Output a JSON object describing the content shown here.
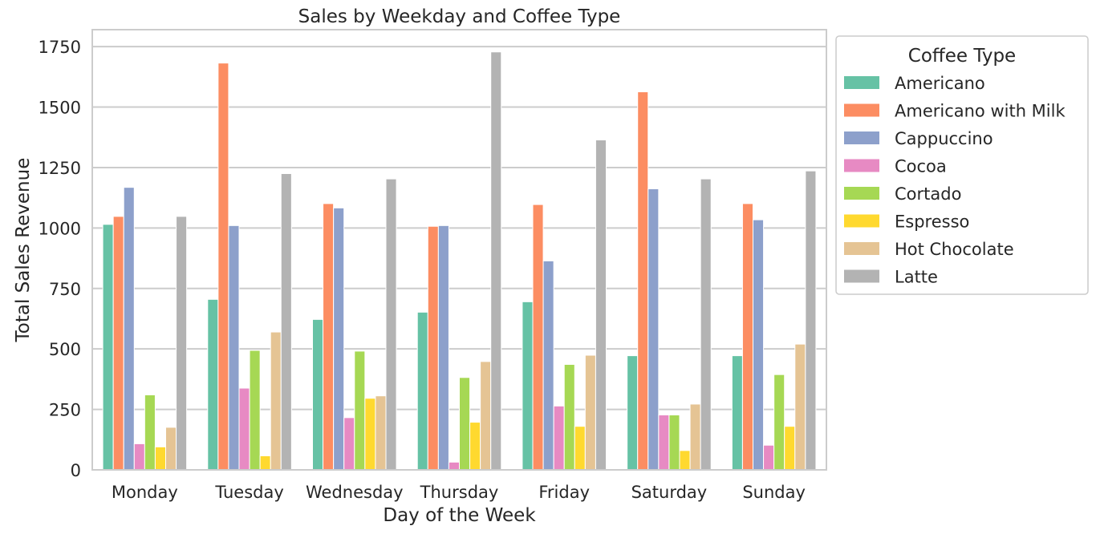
{
  "chart_data": {
    "type": "bar",
    "title": "Sales by Weekday and Coffee Type",
    "xlabel": "Day of the Week",
    "ylabel": "Total Sales Revenue",
    "ylim": [
      0,
      1820
    ],
    "yticks": [
      0,
      250,
      500,
      750,
      1000,
      1250,
      1500,
      1750
    ],
    "grid": "horizontal",
    "legend": {
      "title": "Coffee Type",
      "placement": "outside-right"
    },
    "categories": [
      "Monday",
      "Tuesday",
      "Wednesday",
      "Thursday",
      "Friday",
      "Saturday",
      "Sunday"
    ],
    "series": [
      {
        "name": "Americano",
        "color": "#66c2a5",
        "values": [
          1015,
          705,
          622,
          652,
          695,
          472,
          472
        ]
      },
      {
        "name": "Americano with Milk",
        "color": "#fc8d62",
        "values": [
          1048,
          1682,
          1101,
          1007,
          1097,
          1563,
          1101
        ]
      },
      {
        "name": "Cappuccino",
        "color": "#8da0cb",
        "values": [
          1168,
          1010,
          1083,
          1010,
          864,
          1162,
          1034
        ]
      },
      {
        "name": "Cocoa",
        "color": "#e78ac3",
        "values": [
          108,
          338,
          216,
          32,
          264,
          227,
          102
        ]
      },
      {
        "name": "Cortado",
        "color": "#a6d854",
        "values": [
          310,
          494,
          491,
          382,
          436,
          227,
          394
        ]
      },
      {
        "name": "Espresso",
        "color": "#ffd92f",
        "values": [
          95,
          58,
          296,
          197,
          180,
          80,
          180
        ]
      },
      {
        "name": "Hot Chocolate",
        "color": "#e5c494",
        "values": [
          176,
          570,
          306,
          448,
          474,
          272,
          520
        ]
      },
      {
        "name": "Latte",
        "color": "#b3b3b3",
        "values": [
          1048,
          1225,
          1203,
          1728,
          1364,
          1203,
          1236
        ]
      }
    ]
  }
}
